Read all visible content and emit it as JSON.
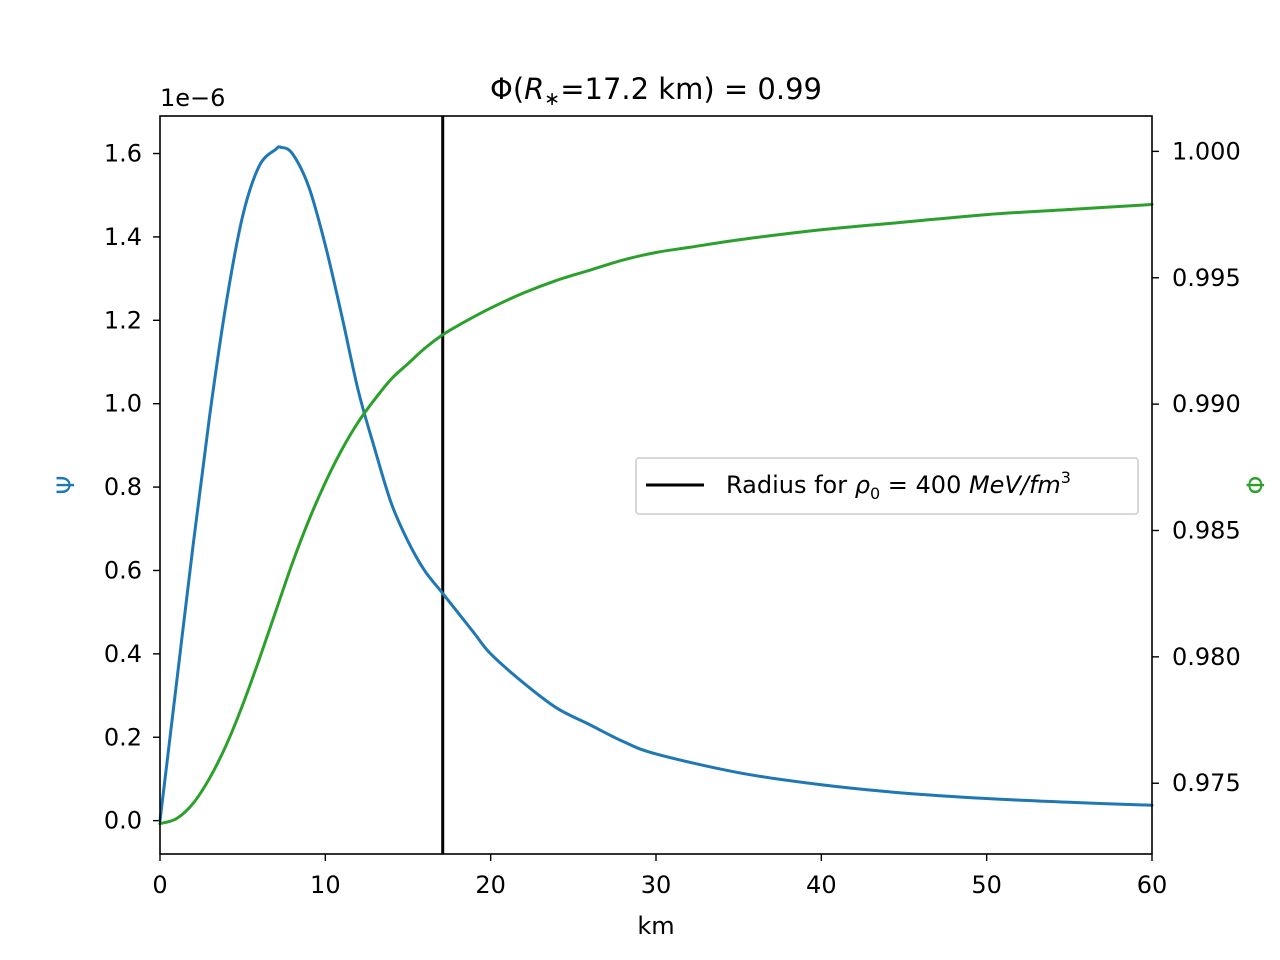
{
  "chart_data": {
    "type": "line",
    "title_parts": [
      "Φ(",
      "R",
      "∗",
      "=17.2 km) = 0.99"
    ],
    "xlabel": "km",
    "ylabel_left": "Ψ",
    "ylabel_right": "Φ",
    "offset_label": "1e−6",
    "xlim": [
      0,
      60
    ],
    "ylim_left": [
      -0.08,
      1.69
    ],
    "ylim_right": [
      0.9722,
      1.0014
    ],
    "x_ticks": [
      0,
      10,
      20,
      30,
      40,
      50,
      60
    ],
    "x_tick_labels": [
      "0",
      "10",
      "20",
      "30",
      "40",
      "50",
      "60"
    ],
    "y_left_ticks": [
      0.0,
      0.2,
      0.4,
      0.6,
      0.8,
      1.0,
      1.2,
      1.4,
      1.6
    ],
    "y_left_tick_labels": [
      "0.0",
      "0.2",
      "0.4",
      "0.6",
      "0.8",
      "1.0",
      "1.2",
      "1.4",
      "1.6"
    ],
    "y_right_ticks": [
      0.975,
      0.98,
      0.985,
      0.99,
      0.995,
      1.0
    ],
    "y_right_tick_labels": [
      "0.975",
      "0.980",
      "0.985",
      "0.990",
      "0.995",
      "1.000"
    ],
    "vline": {
      "x": 17.1,
      "color": "#000000"
    },
    "legend": {
      "parts": [
        "Radius for ",
        "ρ",
        "0",
        " = 400 ",
        "MeV/fm",
        "3"
      ],
      "location": "center-right"
    },
    "series": [
      {
        "axis": "left",
        "color": "#1f77b4",
        "x": [
          0,
          1,
          2,
          3,
          4,
          5,
          6,
          7,
          7.3,
          8,
          9,
          10,
          11,
          12,
          13,
          14,
          15,
          16,
          17,
          18,
          19,
          20,
          22,
          24,
          26,
          28,
          30,
          35,
          40,
          45,
          50,
          55,
          60
        ],
        "y": [
          0.0,
          0.33,
          0.66,
          0.97,
          1.24,
          1.45,
          1.57,
          1.61,
          1.615,
          1.6,
          1.52,
          1.38,
          1.21,
          1.03,
          0.89,
          0.76,
          0.67,
          0.6,
          0.55,
          0.5,
          0.45,
          0.4,
          0.33,
          0.27,
          0.23,
          0.19,
          0.16,
          0.115,
          0.086,
          0.066,
          0.053,
          0.044,
          0.037
        ]
      },
      {
        "axis": "right",
        "color": "#2ca02c",
        "x": [
          0,
          1,
          2,
          3,
          4,
          5,
          6,
          7,
          8,
          9,
          10,
          11,
          12,
          13,
          14,
          15,
          16,
          17,
          18,
          20,
          22,
          24,
          26,
          28,
          30,
          32,
          35,
          40,
          45,
          50,
          55,
          60
        ],
        "y": [
          0.9734,
          0.9736,
          0.9742,
          0.9752,
          0.9765,
          0.9781,
          0.9799,
          0.9818,
          0.9837,
          0.9854,
          0.9869,
          0.9882,
          0.9893,
          0.9902,
          0.991,
          0.9916,
          0.9922,
          0.9927,
          0.9931,
          0.9938,
          0.9944,
          0.9949,
          0.9953,
          0.9957,
          0.996,
          0.9962,
          0.9965,
          0.9969,
          0.9972,
          0.9975,
          0.9977,
          0.9979
        ]
      }
    ]
  }
}
